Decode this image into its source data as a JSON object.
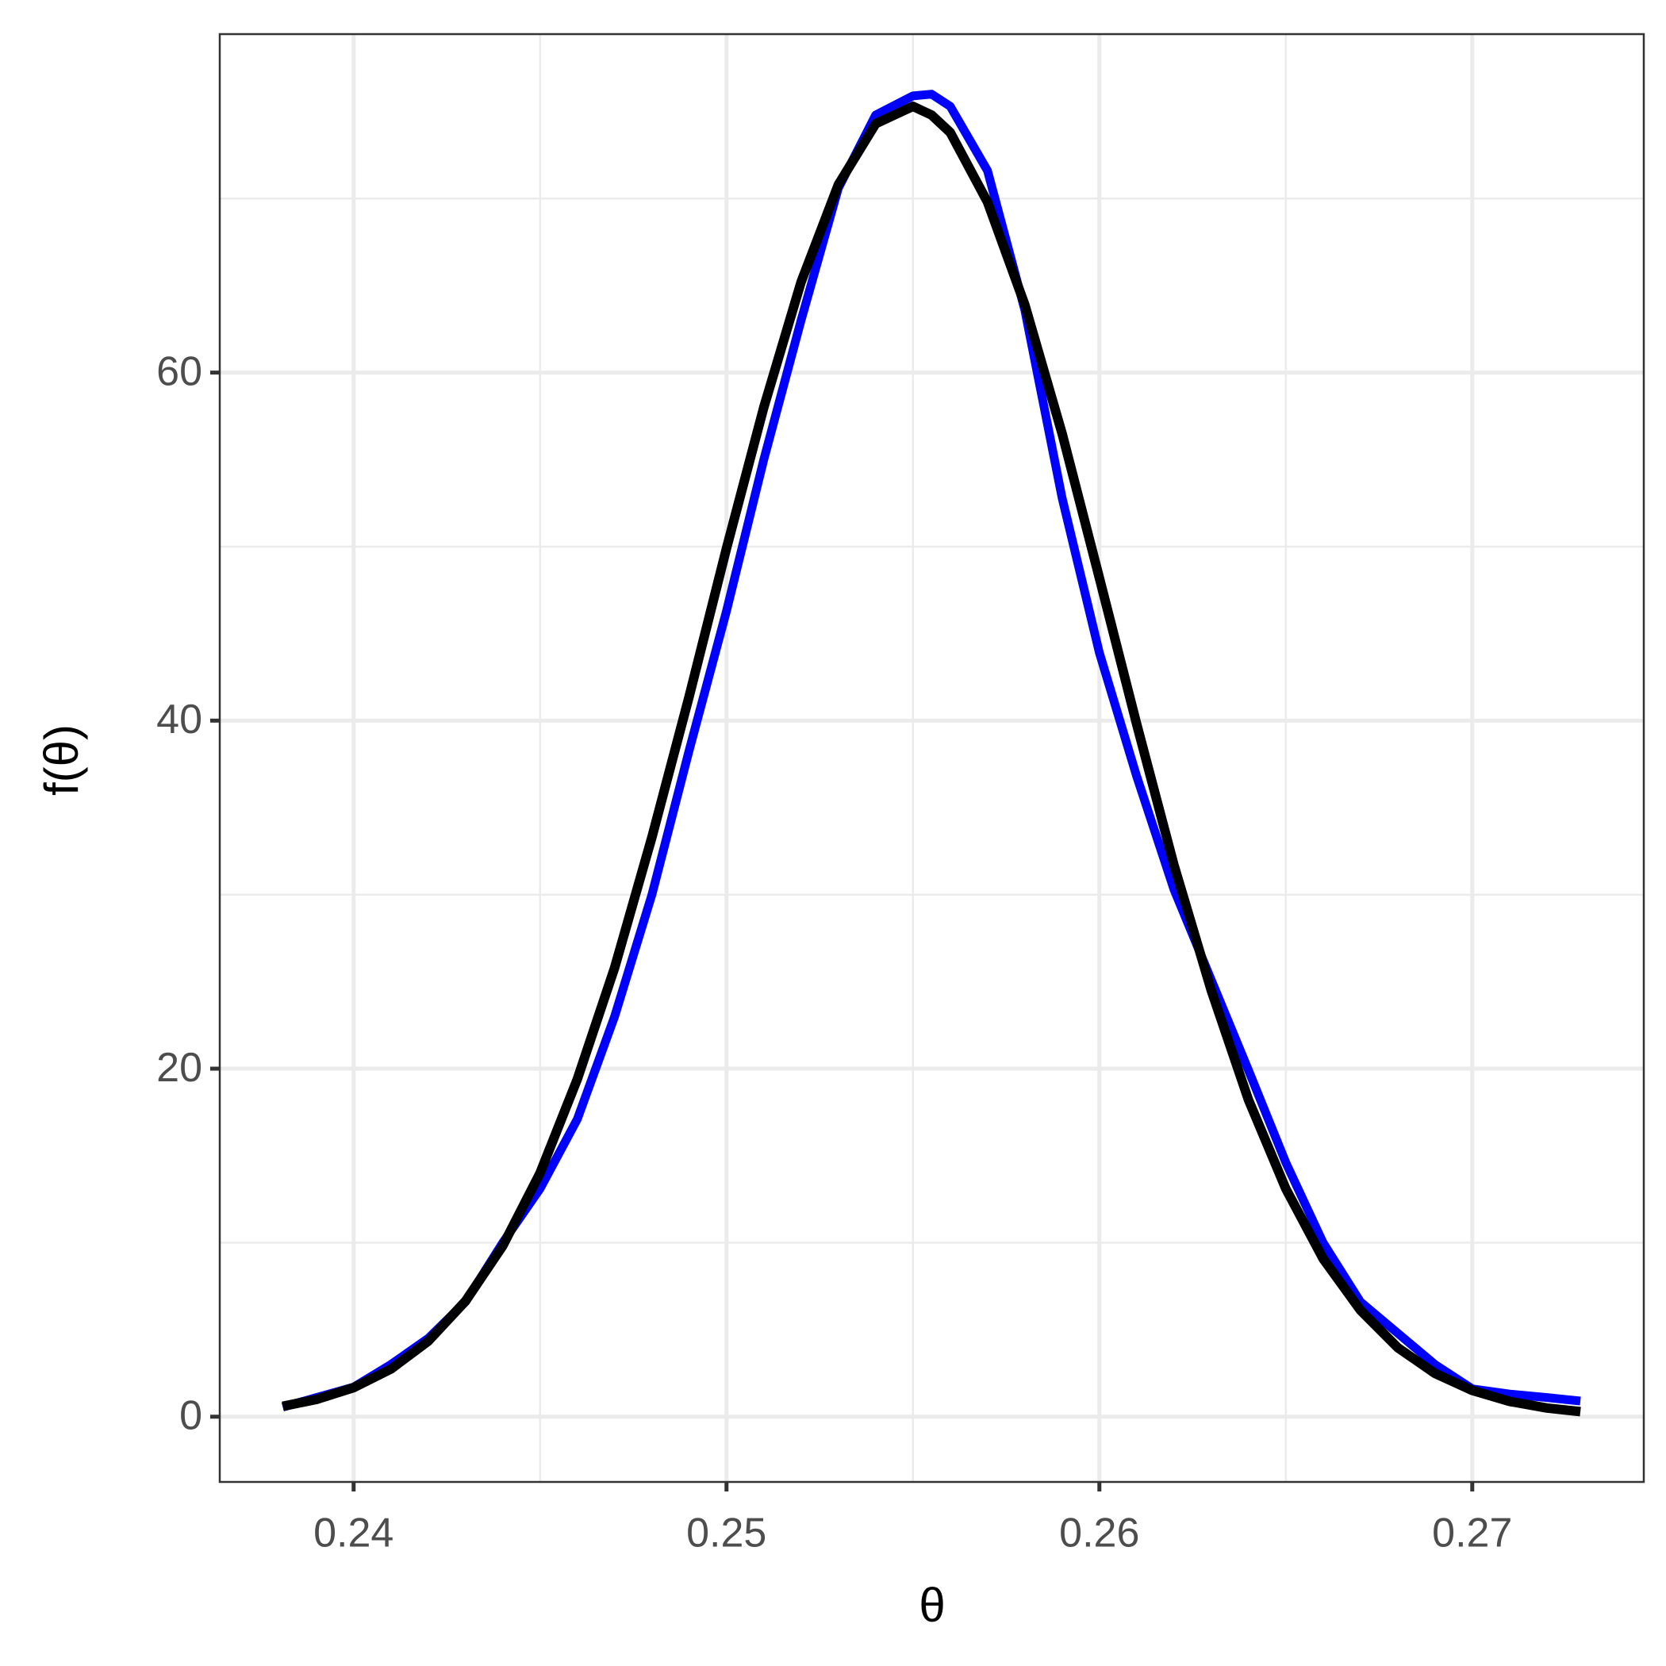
{
  "chart_data": {
    "type": "line",
    "x_label": "θ",
    "y_label": "f(θ)",
    "x": [
      0.2381,
      0.239,
      0.24,
      0.241,
      0.242,
      0.243,
      0.244,
      0.245,
      0.246,
      0.247,
      0.248,
      0.249,
      0.25,
      0.251,
      0.252,
      0.253,
      0.254,
      0.255,
      0.2555,
      0.256,
      0.257,
      0.258,
      0.259,
      0.26,
      0.261,
      0.262,
      0.263,
      0.264,
      0.265,
      0.266,
      0.267,
      0.268,
      0.269,
      0.27,
      0.271,
      0.272,
      0.2729
    ],
    "series": [
      {
        "color": "#0000ff",
        "values": [
          0.55,
          1.1,
          1.7,
          3.0,
          4.5,
          6.6,
          10.0,
          13.1,
          17.1,
          23.0,
          30.0,
          38.3,
          46.3,
          55.0,
          63.0,
          70.6,
          74.8,
          75.9,
          76.0,
          75.3,
          71.6,
          63.6,
          52.8,
          43.9,
          36.8,
          30.3,
          25.1,
          19.9,
          14.6,
          10.0,
          6.6,
          4.8,
          3.0,
          1.6,
          1.3,
          1.1,
          0.9
        ]
      },
      {
        "color": "#000000",
        "values": [
          0.6,
          0.99,
          1.67,
          2.74,
          4.34,
          6.64,
          9.82,
          14.0,
          19.4,
          25.8,
          33.3,
          41.4,
          49.9,
          58.0,
          65.2,
          70.8,
          74.3,
          75.3,
          74.8,
          73.8,
          69.8,
          63.9,
          56.5,
          48.2,
          39.8,
          31.7,
          24.5,
          18.2,
          13.1,
          9.08,
          6.12,
          3.97,
          2.49,
          1.51,
          0.88,
          0.5,
          0.29
        ]
      }
    ],
    "xlim": [
      0.23641,
      0.2746
    ],
    "ylim": [
      -3.75,
      79.45
    ],
    "xticks": [
      0.24,
      0.25,
      0.26,
      0.27
    ],
    "yticks": [
      0,
      20,
      40,
      60
    ],
    "x_minor_grid": [
      0.245,
      0.255,
      0.265
    ],
    "y_minor_grid": [
      10,
      30,
      50,
      70
    ],
    "grid": true
  }
}
